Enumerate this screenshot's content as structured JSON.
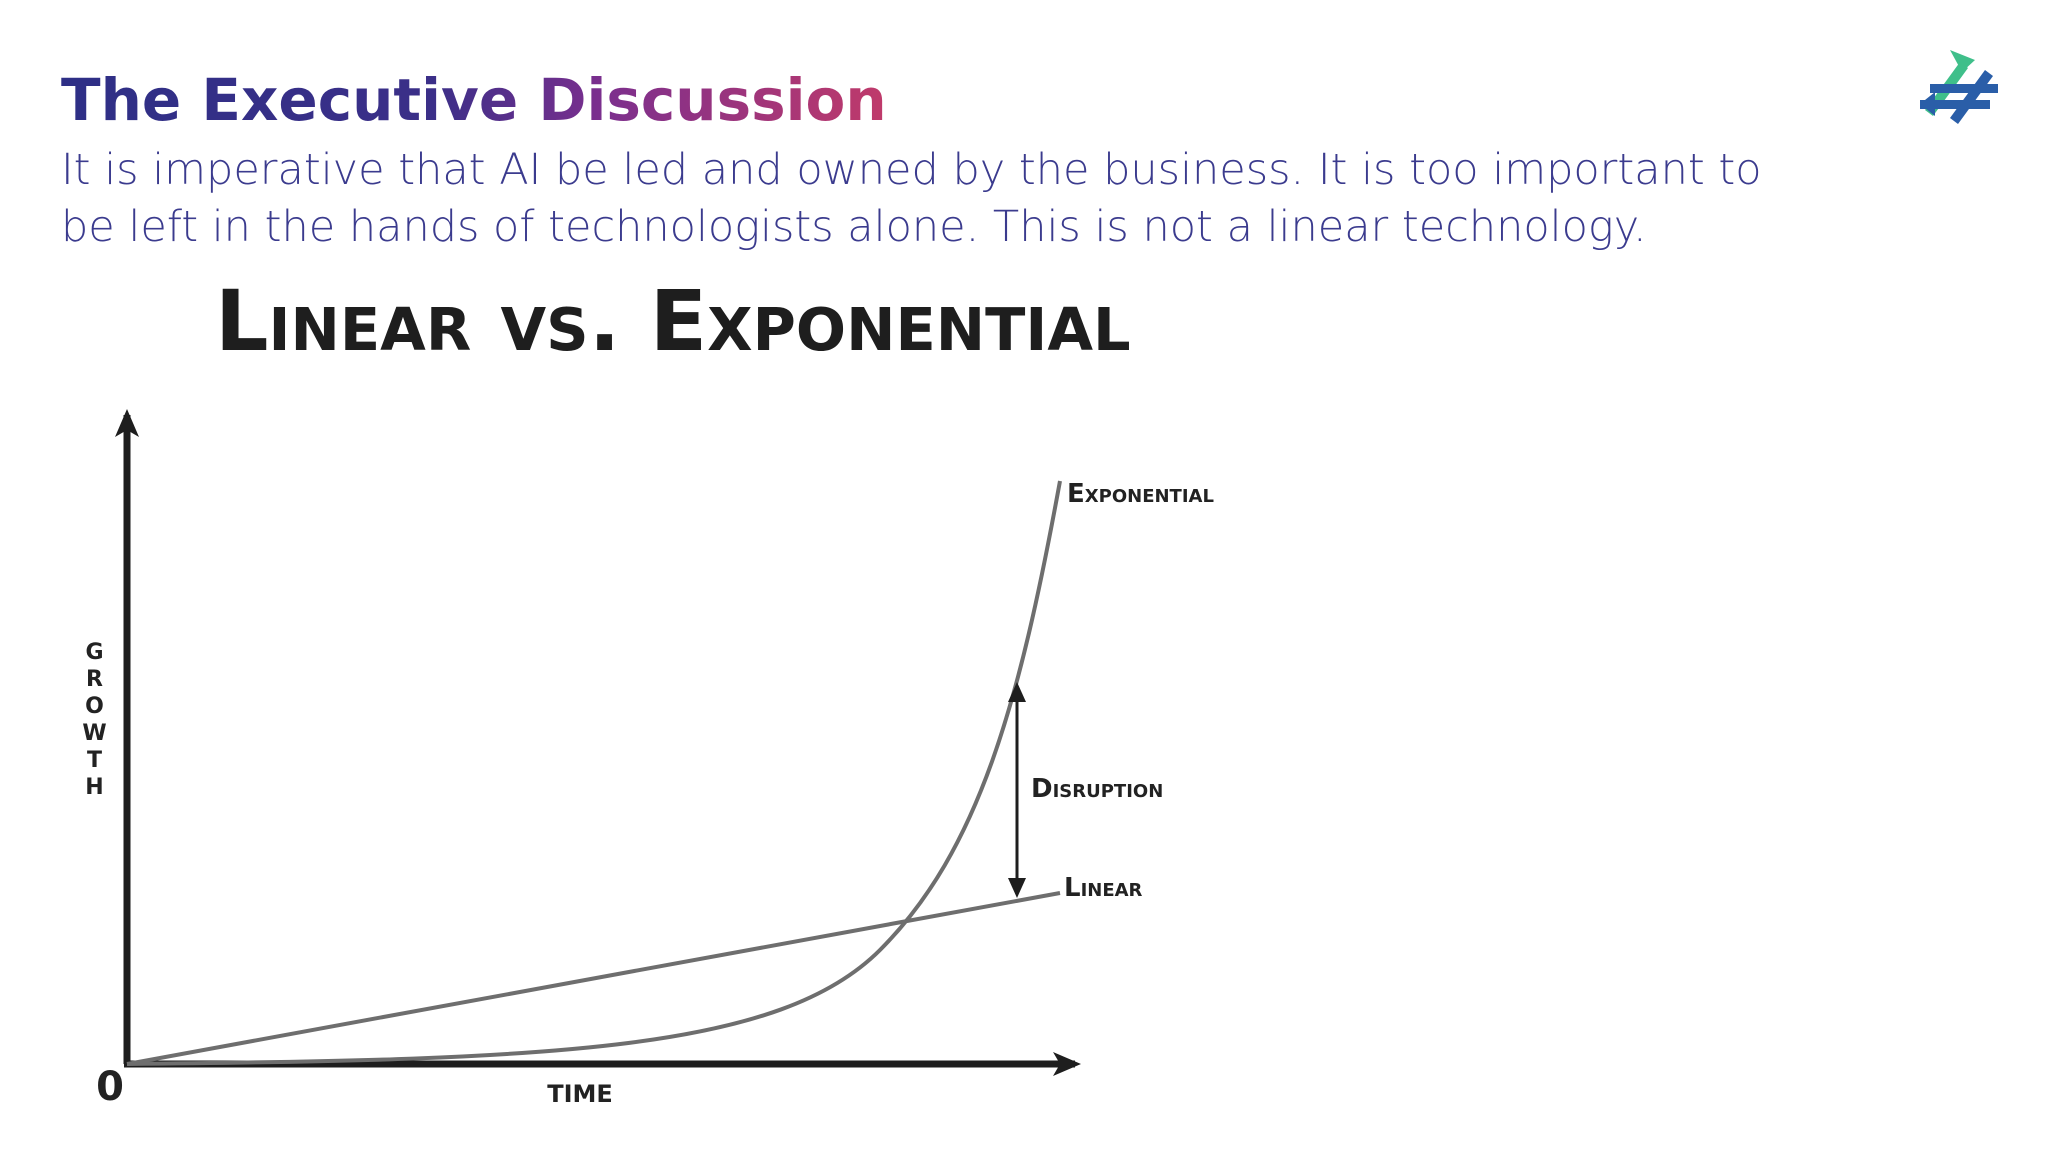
{
  "header": {
    "title": "The Executive Discussion",
    "subtitle": "It is imperative that AI be led and owned by the business. It is too important to be left in the hands of technologists alone. This is not a linear technology."
  },
  "diagram": {
    "title": "Linear vs. Exponential",
    "y_axis_label": "GROWTH",
    "x_axis_label": "TIME",
    "origin_label": "0",
    "curves": [
      {
        "label": "Exponential"
      },
      {
        "label": "Linear"
      }
    ],
    "gap_label": "Disruption"
  }
}
